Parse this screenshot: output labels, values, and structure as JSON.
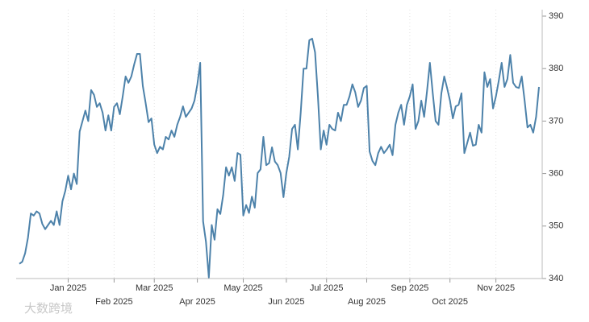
{
  "chart_data": {
    "type": "line",
    "watermark": "大数跨境",
    "color": "#4d82aa",
    "categories": [
      null,
      null,
      null,
      null,
      null,
      null,
      null,
      null,
      null,
      null,
      null,
      null,
      null,
      null,
      null,
      null,
      null,
      "Jan 2025",
      null,
      null,
      null,
      null,
      null,
      null,
      null,
      null,
      null,
      null,
      null,
      null,
      null,
      null,
      null,
      "Feb 2025",
      null,
      null,
      null,
      null,
      null,
      null,
      null,
      null,
      null,
      null,
      null,
      null,
      null,
      "Mar 2025",
      null,
      null,
      null,
      null,
      null,
      null,
      null,
      null,
      null,
      null,
      null,
      null,
      null,
      null,
      "Apr 2025",
      null,
      null,
      null,
      null,
      null,
      null,
      null,
      null,
      null,
      null,
      null,
      null,
      null,
      null,
      null,
      "May 2025",
      null,
      null,
      null,
      null,
      null,
      null,
      null,
      null,
      null,
      null,
      null,
      null,
      null,
      null,
      "Jun 2025",
      null,
      null,
      null,
      null,
      null,
      null,
      null,
      null,
      null,
      null,
      null,
      null,
      null,
      "Jul 2025",
      null,
      null,
      null,
      null,
      null,
      null,
      null,
      null,
      null,
      null,
      null,
      null,
      null,
      "Aug 2025",
      null,
      null,
      null,
      null,
      null,
      null,
      null,
      null,
      null,
      null,
      null,
      null,
      null,
      null,
      "Sep 2025",
      null,
      null,
      null,
      null,
      null,
      null,
      null,
      null,
      null,
      null,
      null,
      null,
      null,
      "Oct 2025",
      null,
      null,
      null,
      null,
      null,
      null,
      null,
      null,
      null,
      null,
      null,
      null,
      null,
      null,
      null,
      "Nov 2025",
      null,
      null,
      null,
      null,
      null,
      null,
      null,
      null,
      null,
      null,
      null,
      null,
      null,
      null,
      null
    ],
    "values": [
      342.8,
      343.2,
      344.8,
      347.8,
      352.4,
      352,
      352.8,
      352.4,
      350.4,
      349.4,
      350.2,
      351,
      350.2,
      352.8,
      350.2,
      354.7,
      356.7,
      359.6,
      357,
      360,
      358,
      368,
      370,
      372,
      370,
      375.9,
      375,
      372.7,
      373.4,
      371.6,
      368.2,
      371.1,
      368.2,
      372.7,
      373.4,
      371.3,
      374.7,
      378.5,
      377.3,
      378.5,
      380.8,
      382.8,
      382.8,
      376.7,
      373.4,
      369.8,
      370.5,
      365.5,
      363.9,
      365.1,
      364.6,
      367,
      366.5,
      368.2,
      367,
      369.3,
      370.8,
      372.8,
      370.8,
      371.6,
      372.4,
      373.9,
      377,
      381.1,
      350.9,
      347,
      340.2,
      350.2,
      347.4,
      353.2,
      352.3,
      355.9,
      361.2,
      359.6,
      361.2,
      358.6,
      363.9,
      363.6,
      352,
      354,
      352.5,
      355.6,
      353.5,
      360.1,
      360.8,
      367,
      361.6,
      362,
      365,
      362.3,
      361.6,
      360.1,
      355.5,
      360.1,
      363.2,
      368.5,
      369.3,
      364.6,
      371.6,
      380,
      380,
      385.4,
      385.7,
      383.1,
      374.7,
      364.6,
      368.2,
      365.5,
      369.3,
      368.5,
      368.2,
      371.6,
      370,
      373.1,
      373.1,
      374.7,
      377,
      375.5,
      372.7,
      373.9,
      376.3,
      376.7,
      364.2,
      362.4,
      361.6,
      363.9,
      365.1,
      363.9,
      364.6,
      365.5,
      363.5,
      369.3,
      371.6,
      373.1,
      369.3,
      373.1,
      374.7,
      377,
      368.5,
      370,
      373.9,
      370.8,
      375.7,
      381.1,
      375.3,
      370,
      369.3,
      375.3,
      378.5,
      376.3,
      373.9,
      370.5,
      372.8,
      373.1,
      375.3,
      363.9,
      365.8,
      367.8,
      365.3,
      365.5,
      369.3,
      367.8,
      379.3,
      376.5,
      378,
      372.4,
      374.7,
      377.7,
      381.1,
      376.5,
      378,
      382.6,
      377.3,
      376.5,
      376.3,
      378.5,
      373.9,
      368.8,
      369.3,
      367.8,
      370.8,
      376.5
    ],
    "ylim": [
      340,
      390
    ],
    "yticks": [
      340,
      350,
      360,
      370,
      380,
      390
    ],
    "grid": true
  }
}
